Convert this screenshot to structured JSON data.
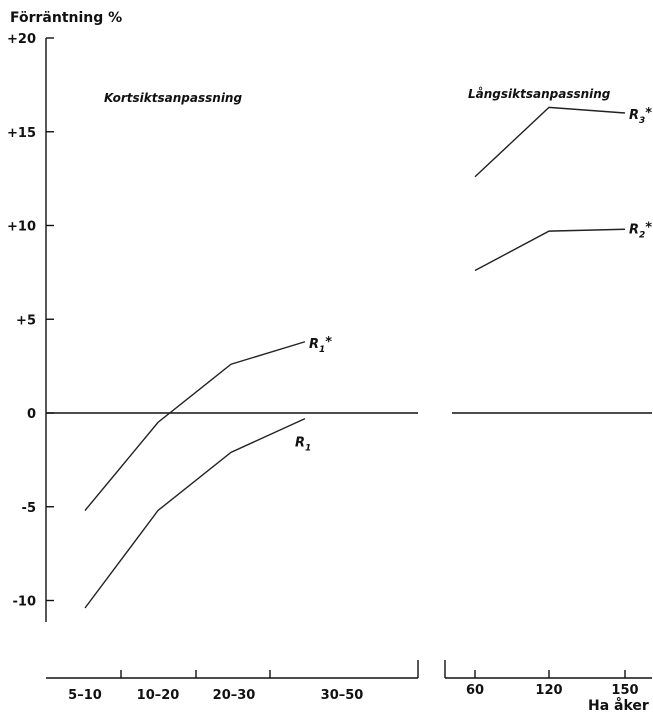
{
  "chart_data": {
    "type": "line",
    "ylabel": "Förräntning %",
    "xlabel": "Ha åker",
    "ylim": [
      -11,
      20
    ],
    "y_ticks": [
      "+20",
      "+15",
      "+10",
      "+5",
      "0",
      "-5",
      "-10"
    ],
    "y_tick_values": [
      20,
      15,
      10,
      5,
      0,
      -5,
      -10
    ],
    "panels": [
      {
        "title": "Kortsiktsanpassning",
        "categories": [
          "5–10",
          "10–20",
          "20–30",
          "30–50"
        ],
        "series": [
          {
            "name": "R1*",
            "label_main": "R",
            "label_sub": "1",
            "label_star": "*",
            "x": [
              7.5,
              15,
              25,
              35
            ],
            "values": [
              -5.2,
              -0.5,
              2.6,
              3.8
            ]
          },
          {
            "name": "R1",
            "label_main": "R",
            "label_sub": "1",
            "label_star": "",
            "x": [
              7.5,
              15,
              25,
              35
            ],
            "values": [
              -10.4,
              -5.2,
              -2.1,
              -0.3
            ]
          }
        ]
      },
      {
        "title": "Långsiktsanpassning",
        "categories": [
          "60",
          "120",
          "150"
        ],
        "series": [
          {
            "name": "R3*",
            "label_main": "R",
            "label_sub": "3",
            "label_star": "*",
            "x": [
              60,
              120,
              150
            ],
            "values": [
              12.6,
              16.3,
              16.0
            ]
          },
          {
            "name": "R2*",
            "label_main": "R",
            "label_sub": "2",
            "label_star": "*",
            "x": [
              60,
              120,
              150
            ],
            "values": [
              7.6,
              9.7,
              9.8
            ]
          }
        ]
      }
    ]
  }
}
